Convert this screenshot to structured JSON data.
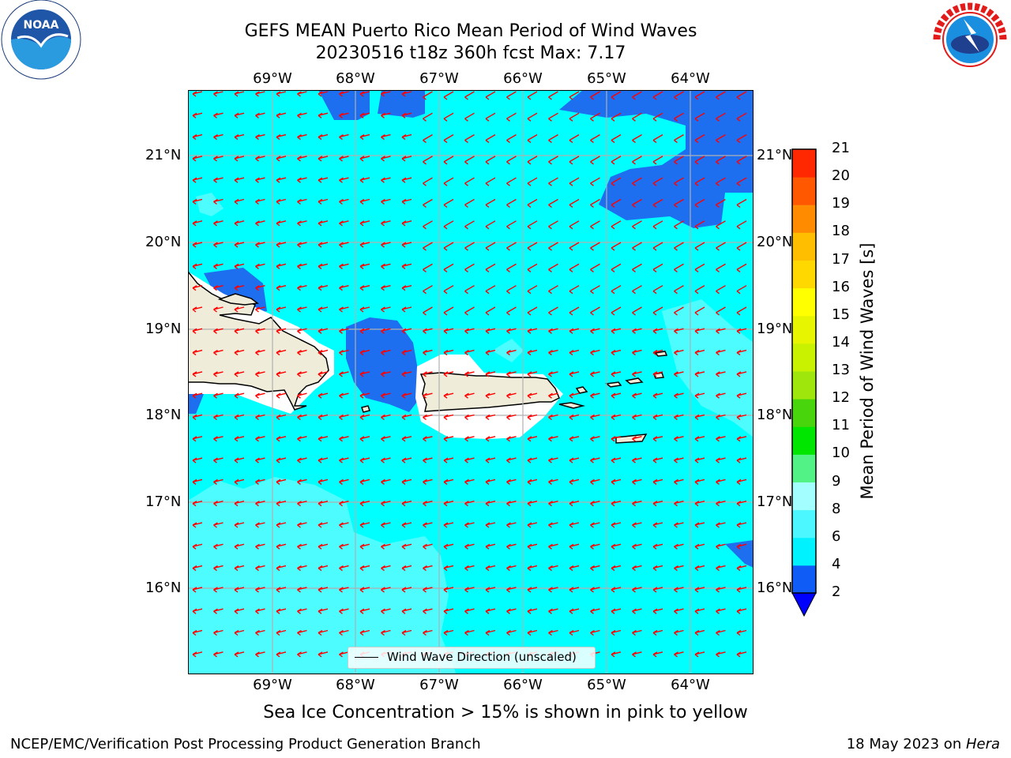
{
  "title": {
    "line1": "GEFS MEAN Puerto Rico Mean Period of Wind Waves",
    "line2": "20230516 t18z 360h fcst   Max: 7.17"
  },
  "axes": {
    "lon_ticks": [
      "69°W",
      "68°W",
      "67°W",
      "66°W",
      "65°W",
      "64°W"
    ],
    "lat_ticks": [
      "21°N",
      "20°N",
      "19°N",
      "18°N",
      "17°N",
      "16°N"
    ]
  },
  "legend": {
    "label": "Wind Wave Direction (unscaled)"
  },
  "colorbar": {
    "title": "Mean Period of Wind Waves [s]",
    "ticks": [
      "2",
      "4",
      "6",
      "8",
      "9",
      "10",
      "11",
      "12",
      "13",
      "14",
      "15",
      "16",
      "17",
      "18",
      "19",
      "20",
      "21"
    ],
    "colors": [
      "#0f5cf7",
      "#00f2ff",
      "#4df7ff",
      "#a3ffff",
      "#52f287",
      "#00e600",
      "#48d50c",
      "#9ee60b",
      "#c8f200",
      "#e8f500",
      "#ffff00",
      "#ffd800",
      "#ffbf00",
      "#ff8c00",
      "#ff5800",
      "#ff2800",
      "#ff0000"
    ],
    "under_color": "#0000ff",
    "arrow_color": "#0000ff"
  },
  "map": {
    "colors": {
      "deep": "#1e6ef0",
      "base": "#00ffff",
      "light": "#4cfcff",
      "land": "#efecd9",
      "mask": "#ffffff",
      "arrow": "#ff0000",
      "grid": "#b0b0b0"
    }
  },
  "notes": {
    "sea_ice": "Sea Ice Concentration > 15% is shown in pink to yellow"
  },
  "footer": {
    "left": "NCEP/EMC/Verification Post Processing Product Generation Branch",
    "date": "18 May 2023 on ",
    "machine": "Hera"
  },
  "logos": {
    "noaa": "NOAA",
    "nws": "NATIONAL WEATHER SERVICE"
  }
}
